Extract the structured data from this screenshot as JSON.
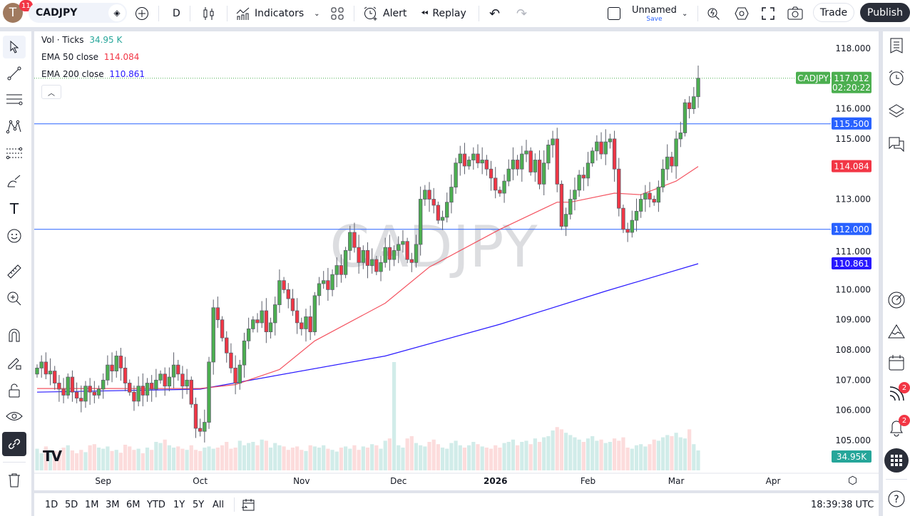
{
  "topbar": {
    "avatar_letter": "T",
    "avatar_badge": "11",
    "symbol": "CADJPY",
    "interval": "D",
    "indicators_label": "Indicators",
    "alert_label": "Alert",
    "replay_label": "Replay",
    "layout_name": "Unnamed",
    "layout_save": "Save",
    "trade_label": "Trade",
    "publish_label": "Publish"
  },
  "legend": {
    "vol_label": "Vol · Ticks",
    "vol_value": "34.95 K",
    "ema50_label": "EMA 50 close",
    "ema50_value": "114.084",
    "ema200_label": "EMA 200 close",
    "ema200_value": "110.861"
  },
  "watermark": "CADJPY",
  "price_axis": {
    "ticks": [
      "118.000",
      "116.000",
      "115.000",
      "113.000",
      "111.000",
      "110.000",
      "109.000",
      "108.000",
      "107.000",
      "106.000",
      "105.000"
    ],
    "tick_values": [
      118,
      116,
      115,
      113,
      111,
      110,
      109,
      108,
      107,
      106,
      105
    ],
    "last_symbol": "CADJPY",
    "last_price": "117.012",
    "countdown": "02:20:22",
    "hline1": "115.500",
    "hline2": "112.000",
    "ema50_tag": "114.084",
    "ema200_tag": "110.861",
    "vol_tag": "34.95K"
  },
  "time_axis": {
    "labels": [
      "Sep",
      "Oct",
      "Nov",
      "Dec",
      "2026",
      "Feb",
      "Mar",
      "Apr"
    ]
  },
  "bottombar": {
    "ranges": [
      "1D",
      "5D",
      "1M",
      "3M",
      "6M",
      "YTD",
      "1Y",
      "5Y",
      "All"
    ],
    "clock": "18:39:38 UTC"
  },
  "rightbar": {
    "streams_badge": "2",
    "alerts_badge": "2"
  },
  "colors": {
    "up": "#4caf50",
    "down": "#f23645",
    "ema50": "#f23645",
    "ema200": "#2919ff",
    "hline": "#2962ff",
    "vol_up": "#d1ece9",
    "vol_down": "#fcdcdc",
    "accent": "#2962ff"
  },
  "chart_data": {
    "type": "candlestick",
    "symbol": "CADJPY",
    "interval": "D",
    "ylim": [
      104.7,
      118.6
    ],
    "horizontal_lines": [
      115.5,
      112.0
    ],
    "last_price": 117.012,
    "close": [
      107.4,
      107.6,
      107.2,
      107.3,
      106.9,
      106.7,
      106.5,
      107.1,
      106.6,
      106.4,
      106.3,
      106.8,
      106.6,
      106.5,
      106.7,
      107.0,
      107.5,
      107.3,
      107.8,
      107.4,
      106.9,
      106.6,
      106.3,
      106.8,
      106.5,
      106.9,
      106.7,
      107.0,
      107.2,
      106.8,
      107.1,
      107.5,
      107.2,
      106.8,
      107.0,
      106.2,
      105.4,
      105.3,
      105.6,
      107.6,
      109.4,
      109.0,
      108.4,
      107.9,
      107.4,
      106.9,
      107.5,
      108.3,
      108.7,
      109.0,
      108.9,
      109.3,
      108.6,
      108.9,
      109.5,
      110.3,
      110.0,
      109.7,
      109.3,
      108.9,
      108.7,
      109.1,
      108.6,
      109.8,
      110.2,
      110.3,
      110.0,
      110.5,
      110.8,
      110.5,
      111.3,
      111.9,
      111.4,
      110.9,
      111.3,
      110.8,
      111.0,
      110.6,
      110.9,
      111.4,
      111.0,
      111.3,
      111.5,
      111.6,
      111.0,
      110.9,
      111.5,
      113.0,
      113.3,
      113.0,
      112.8,
      112.3,
      112.4,
      112.9,
      113.4,
      114.2,
      114.5,
      114.1,
      114.3,
      114.5,
      114.2,
      114.3,
      114.0,
      113.7,
      113.3,
      113.2,
      113.6,
      114.0,
      114.3,
      114.0,
      114.5,
      114.6,
      113.9,
      114.3,
      113.5,
      114.2,
      114.8,
      115.0,
      113.5,
      112.1,
      112.5,
      113.0,
      113.3,
      113.8,
      113.7,
      114.2,
      114.6,
      114.9,
      114.5,
      114.9,
      115.0,
      114.0,
      112.7,
      112.0,
      111.9,
      112.3,
      112.6,
      113.0,
      113.2,
      113.0,
      112.9,
      113.4,
      114.0,
      114.4,
      114.1,
      115.0,
      115.2,
      116.2,
      116.0,
      116.4,
      117.012
    ],
    "volume_k": [
      38,
      30,
      42,
      36,
      34,
      33,
      40,
      44,
      35,
      30,
      36,
      32,
      44,
      46,
      40,
      38,
      42,
      34,
      36,
      31,
      45,
      42,
      36,
      38,
      30,
      40,
      36,
      50,
      48,
      54,
      44,
      40,
      42,
      38,
      36,
      44,
      36,
      34,
      40,
      42,
      38,
      40,
      44,
      50,
      38,
      40,
      52,
      44,
      48,
      50,
      44,
      54,
      52,
      40,
      48,
      44,
      42,
      36,
      40,
      42,
      36,
      34,
      44,
      42,
      40,
      44,
      38,
      36,
      33,
      40,
      42,
      38,
      44,
      36,
      42,
      40,
      46,
      44,
      38,
      52,
      56,
      190,
      44,
      40,
      56,
      60,
      48,
      44,
      42,
      50,
      54,
      46,
      40,
      38,
      48,
      52,
      44,
      40,
      44,
      50,
      46,
      42,
      40,
      38,
      44,
      40,
      48,
      50,
      54,
      44,
      50,
      52,
      46,
      56,
      50,
      58,
      60,
      70,
      76,
      72,
      66,
      62,
      58,
      54,
      50,
      56,
      60,
      52,
      54,
      48,
      50,
      56,
      52,
      58,
      40,
      38,
      44,
      46,
      42,
      46,
      54,
      52,
      58,
      62,
      60,
      66,
      58,
      56,
      72,
      46,
      34.95
    ],
    "ema50": [
      [
        0,
        106.72
      ],
      [
        37,
        106.72
      ],
      [
        45,
        106.85
      ],
      [
        55,
        107.35
      ],
      [
        63,
        108.3
      ],
      [
        79,
        109.55
      ],
      [
        89,
        110.75
      ],
      [
        105,
        112.0
      ],
      [
        118,
        112.9
      ],
      [
        121,
        112.9
      ],
      [
        131,
        113.2
      ],
      [
        137,
        113.15
      ],
      [
        145,
        113.6
      ],
      [
        150,
        114.084
      ]
    ],
    "ema200": [
      [
        0,
        106.6
      ],
      [
        37,
        106.7
      ],
      [
        79,
        107.8
      ],
      [
        105,
        108.85
      ],
      [
        129,
        109.95
      ],
      [
        150,
        110.861
      ]
    ],
    "x_labels": [
      "Sep",
      "Oct",
      "Nov",
      "Dec",
      "2026",
      "Feb",
      "Mar",
      "Apr"
    ]
  }
}
